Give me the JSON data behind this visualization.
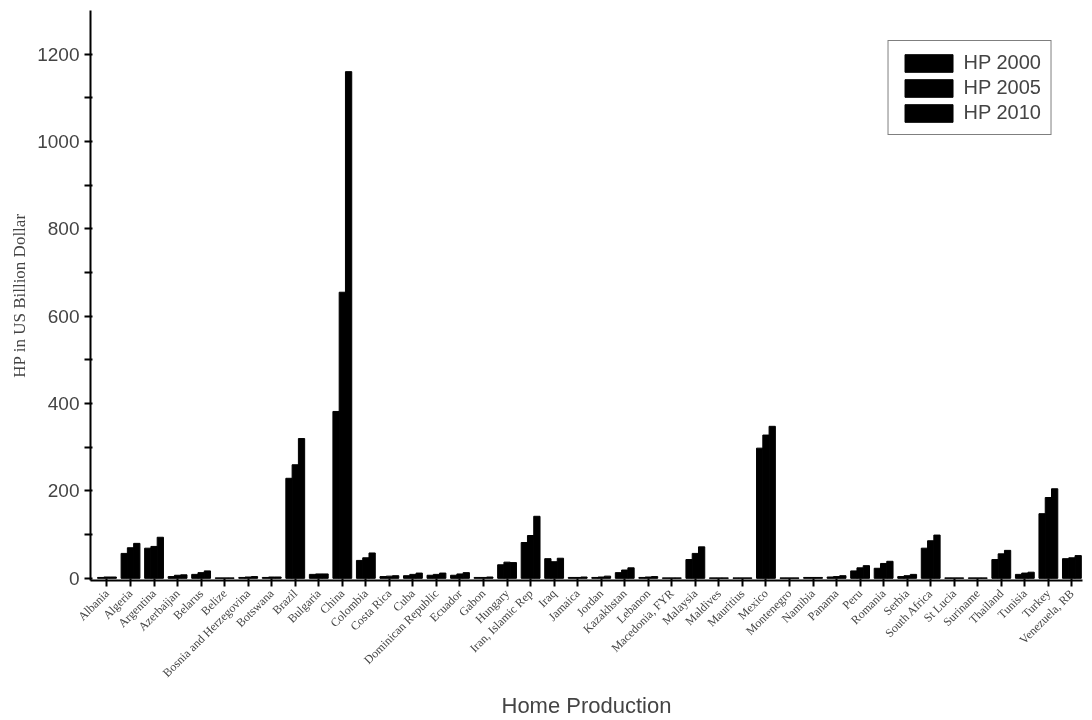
{
  "chart_data": {
    "type": "bar",
    "xlabel": "Home Production",
    "ylabel": "HP in US Billion Dollar",
    "categories": [
      "Albania",
      "Algeria",
      "Argentina",
      "Azerbaijan",
      "Belarus",
      "Belize",
      "Bosnia and Herzegovina",
      "Botswana",
      "Brazil",
      "Bulgaria",
      "China",
      "Colombia",
      "Costa Rica",
      "Cuba",
      "Dominican Republic",
      "Ecuador",
      "Gabon",
      "Hungary",
      "Iran, Islamic Rep",
      "Iraq",
      "Jamaica",
      "Jordan",
      "Kazakhstan",
      "Lebanon",
      "Macedonia, FYR",
      "Malaysia",
      "Maldives",
      "Mauritius",
      "Mexico",
      "Montenegro",
      "Namibia",
      "Panama",
      "Peru",
      "Romania",
      "Serbia",
      "South Africa",
      "St Lucia",
      "Suriname",
      "Thailand",
      "Tunisia",
      "Turkey",
      "Venezuela, RB"
    ],
    "series": [
      {
        "name": "HP 2000",
        "color": "#000000",
        "values": [
          2,
          57,
          69,
          4,
          9,
          1,
          2,
          2,
          229,
          9,
          382,
          41,
          4,
          6,
          7,
          7,
          2,
          31,
          82,
          45,
          2,
          2,
          13,
          2,
          1,
          43,
          1,
          1,
          298,
          1,
          2,
          3,
          17,
          23,
          4,
          69,
          1,
          1,
          43,
          9,
          148,
          45
        ]
      },
      {
        "name": "HP 2005",
        "color": "#000000",
        "values": [
          3,
          70,
          73,
          7,
          13,
          1,
          3,
          3,
          260,
          10,
          655,
          47,
          5,
          9,
          9,
          10,
          2,
          37,
          98,
          38,
          2,
          3,
          19,
          3,
          1,
          57,
          1,
          1,
          328,
          1,
          2,
          4,
          24,
          34,
          6,
          86,
          1,
          1,
          56,
          12,
          185,
          47
        ]
      },
      {
        "name": "HP 2010",
        "color": "#000000",
        "values": [
          3,
          80,
          94,
          8,
          17,
          1,
          4,
          3,
          320,
          10,
          1160,
          58,
          6,
          12,
          12,
          13,
          3,
          36,
          142,
          46,
          3,
          5,
          24,
          4,
          1,
          72,
          1,
          1,
          348,
          1,
          2,
          6,
          29,
          39,
          9,
          99,
          1,
          1,
          64,
          14,
          205,
          52
        ]
      }
    ],
    "ylim": [
      -5,
      1300
    ],
    "yticks": [
      0,
      {
        "value": 100,
        "label": null
      },
      200,
      {
        "value": 300,
        "label": null
      },
      400,
      {
        "value": 500,
        "label": null
      },
      600,
      {
        "value": 700,
        "label": null
      },
      800,
      {
        "value": 900,
        "label": null
      },
      1000,
      {
        "value": 1100,
        "label": null
      },
      1200
    ],
    "grid": false,
    "legend": "top right"
  }
}
